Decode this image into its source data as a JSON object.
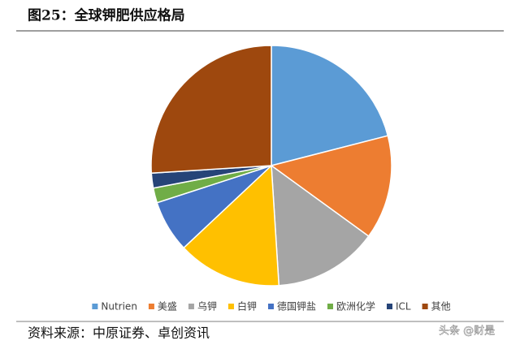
{
  "chart_data": {
    "type": "pie",
    "title": "图25：全球钾肥供应格局",
    "categories": [
      "Nutrien",
      "美盛",
      "乌钾",
      "白钾",
      "德国钾盐",
      "欧洲化学",
      "ICL",
      "其他"
    ],
    "values": [
      21,
      14,
      14,
      14,
      7,
      2,
      2,
      26
    ],
    "colors": [
      "#5b9bd5",
      "#ed7d31",
      "#a5a5a5",
      "#ffc000",
      "#4472c4",
      "#70ad47",
      "#264478",
      "#9e480e"
    ],
    "legend": "bottom",
    "source": "资料来源：中原证券、卓创资讯",
    "watermark": "头条 @财是"
  }
}
